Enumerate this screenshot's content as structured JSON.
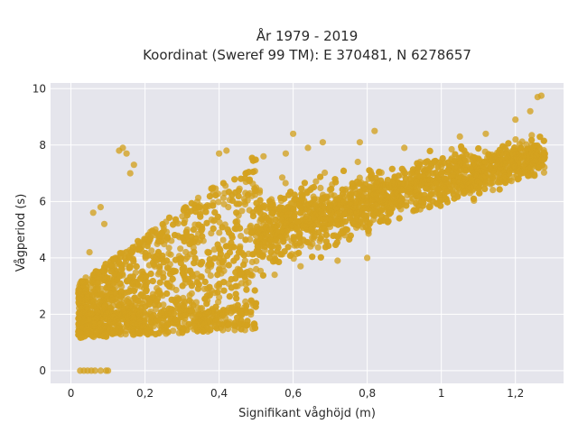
{
  "chart_data": {
    "type": "scatter",
    "title_line1": "År 1979 - 2019",
    "title_line2": "Koordinat (Sweref 99 TM): E 370481, N 6278657",
    "xlabel": "Signifikant våghöjd (m)",
    "ylabel": "Vågperiod (s)",
    "xlim": [
      -0.055,
      1.33
    ],
    "ylim": [
      -0.45,
      10.2
    ],
    "x_ticks": [
      0,
      0.2,
      0.4,
      0.6,
      0.8,
      1,
      1.2
    ],
    "x_tick_labels": [
      "0",
      "0,2",
      "0,4",
      "0,6",
      "0,8",
      "1",
      "1,2"
    ],
    "y_ticks": [
      0,
      2,
      4,
      6,
      8,
      10
    ],
    "y_tick_labels": [
      "0",
      "2",
      "4",
      "6",
      "8",
      "10"
    ],
    "grid": true,
    "marker_color": "#d4a21f",
    "background_color": "#e5e5ec",
    "outlier_points": [
      {
        "x": 0.03,
        "y": 2.5
      },
      {
        "x": 0.04,
        "y": 3.3
      },
      {
        "x": 0.05,
        "y": 4.2
      },
      {
        "x": 0.06,
        "y": 5.6
      },
      {
        "x": 0.08,
        "y": 5.8
      },
      {
        "x": 0.09,
        "y": 5.2
      },
      {
        "x": 0.13,
        "y": 7.8
      },
      {
        "x": 0.14,
        "y": 7.9
      },
      {
        "x": 0.15,
        "y": 7.7
      },
      {
        "x": 0.16,
        "y": 7.0
      },
      {
        "x": 0.17,
        "y": 7.3
      },
      {
        "x": 0.2,
        "y": 1.35
      },
      {
        "x": 0.25,
        "y": 1.4
      },
      {
        "x": 0.3,
        "y": 1.45
      },
      {
        "x": 0.36,
        "y": 1.65
      },
      {
        "x": 0.4,
        "y": 7.7
      },
      {
        "x": 0.42,
        "y": 7.8
      },
      {
        "x": 0.52,
        "y": 7.6
      },
      {
        "x": 0.58,
        "y": 7.7
      },
      {
        "x": 0.6,
        "y": 8.4
      },
      {
        "x": 0.64,
        "y": 7.9
      },
      {
        "x": 0.68,
        "y": 8.1
      },
      {
        "x": 0.78,
        "y": 8.1
      },
      {
        "x": 0.82,
        "y": 8.5
      },
      {
        "x": 0.9,
        "y": 7.9
      },
      {
        "x": 1.05,
        "y": 8.3
      },
      {
        "x": 1.12,
        "y": 8.4
      },
      {
        "x": 1.2,
        "y": 8.9
      },
      {
        "x": 1.24,
        "y": 9.2
      },
      {
        "x": 1.26,
        "y": 9.7
      },
      {
        "x": 1.27,
        "y": 9.75
      },
      {
        "x": 0.5,
        "y": 3.6
      },
      {
        "x": 0.55,
        "y": 3.4
      },
      {
        "x": 0.62,
        "y": 3.7
      },
      {
        "x": 0.72,
        "y": 3.9
      },
      {
        "x": 0.8,
        "y": 4.0
      },
      {
        "x": 0.4,
        "y": 2.6
      },
      {
        "x": 0.45,
        "y": 3.0
      },
      {
        "x": 0.35,
        "y": 2.2
      }
    ],
    "zero_points": [
      {
        "x": 0.025,
        "y": 0
      },
      {
        "x": 0.035,
        "y": 0
      },
      {
        "x": 0.045,
        "y": 0
      },
      {
        "x": 0.055,
        "y": 0
      },
      {
        "x": 0.065,
        "y": 0
      },
      {
        "x": 0.08,
        "y": 0
      },
      {
        "x": 0.095,
        "y": 0
      },
      {
        "x": 0.1,
        "y": 0
      }
    ],
    "bulk_seed": 1979,
    "bulk_count": 4200
  }
}
